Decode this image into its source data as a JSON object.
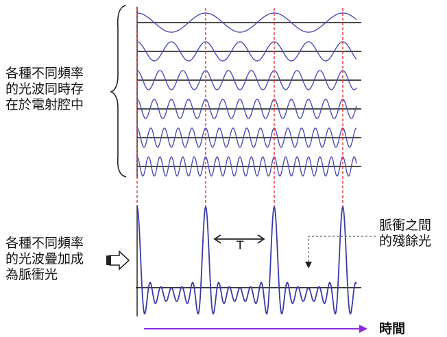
{
  "labels": {
    "coexist_lines": [
      "各種不同頻率",
      "的光波同時存",
      "在於電射腔中"
    ],
    "superpose_lines": [
      "各種不同頻率",
      "的光波疊加成",
      "為脈衝光"
    ],
    "residual_lines": [
      "脈衝之間",
      "的殘餘光"
    ],
    "period": "T",
    "time": "時間"
  },
  "colors": {
    "wave": "#4b4bb4",
    "pulse": "#3a3aa8",
    "axis": "#333333",
    "marker": "#e83030",
    "time_arrow": "#8a2be2",
    "text": "#111111"
  },
  "waves": {
    "count": 6,
    "frequencies": [
      1,
      2,
      3,
      4,
      5,
      6
    ]
  },
  "pulse": {
    "periods_shown": 3,
    "harmonics": 6
  }
}
